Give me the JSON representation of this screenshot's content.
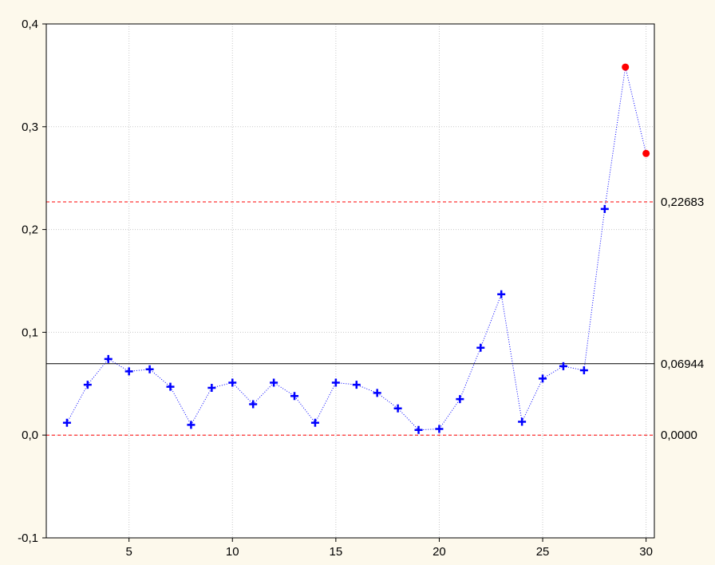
{
  "chart_data": {
    "type": "line",
    "title": "",
    "xlabel": "",
    "ylabel": "",
    "xlim": [
      1,
      30.4
    ],
    "ylim": [
      -0.1,
      0.4
    ],
    "x_ticks": [
      5,
      10,
      15,
      20,
      25,
      30
    ],
    "x_tick_labels": [
      "5",
      "10",
      "15",
      "20",
      "25",
      "30"
    ],
    "y_ticks": [
      -0.1,
      0.0,
      0.1,
      0.2,
      0.3,
      0.4
    ],
    "y_tick_labels": [
      "-0,1",
      "0,0",
      "0,1",
      "0,2",
      "0,3",
      "0,4"
    ],
    "grid": true,
    "series": [
      {
        "color": "#0000ff",
        "marker": "plus",
        "line_style": "dotted",
        "x": [
          2,
          3,
          4,
          5,
          6,
          7,
          8,
          9,
          10,
          11,
          12,
          13,
          14,
          15,
          16,
          17,
          18,
          19,
          20,
          21,
          22,
          23,
          24,
          25,
          26,
          27,
          28,
          29,
          30
        ],
        "y": [
          0.012,
          0.049,
          0.074,
          0.062,
          0.064,
          0.047,
          0.01,
          0.046,
          0.051,
          0.03,
          0.051,
          0.038,
          0.012,
          0.051,
          0.049,
          0.041,
          0.026,
          0.005,
          0.006,
          0.035,
          0.085,
          0.137,
          0.013,
          0.055,
          0.067,
          0.063,
          0.22,
          0.358,
          0.274
        ]
      }
    ],
    "out_of_control_points": {
      "color": "#ff0000",
      "x": [
        29,
        30
      ],
      "y": [
        0.358,
        0.274
      ]
    },
    "reference_lines": [
      {
        "value": 0.22683,
        "label": "0,22683",
        "color": "#ff0000",
        "style": "dashed"
      },
      {
        "value": 0.06944,
        "label": "0,06944",
        "color": "#000000",
        "style": "solid"
      },
      {
        "value": 0.0,
        "label": "0,0000",
        "color": "#ff0000",
        "style": "dashed"
      }
    ],
    "colors": {
      "background": "#fdf9ec",
      "plot_background": "#ffffff",
      "grid": "#c8c8c8"
    }
  }
}
